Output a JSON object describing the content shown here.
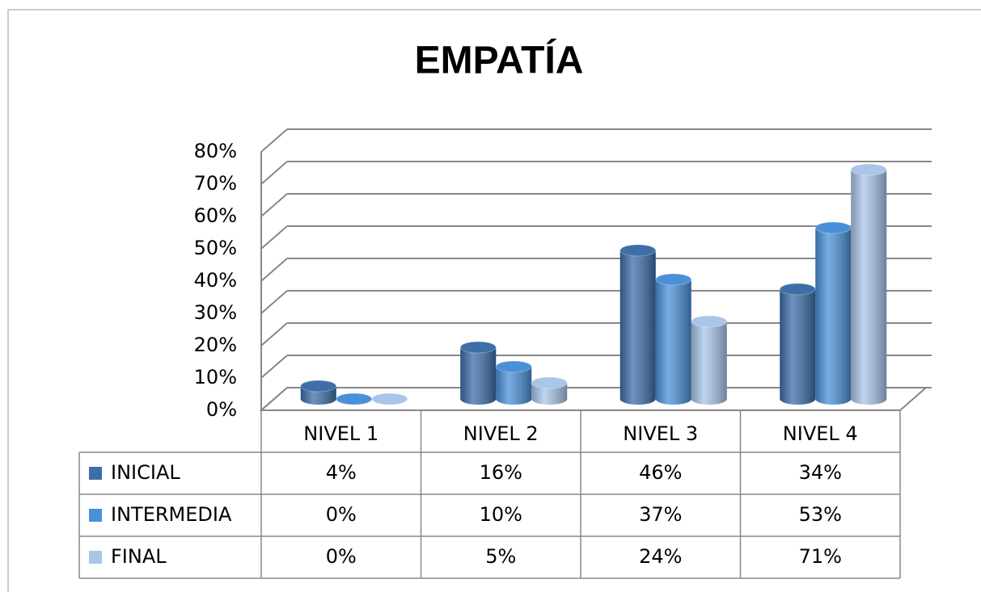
{
  "chart_data": {
    "type": "bar3d",
    "title": "EMPATÍA",
    "categories": [
      "NIVEL 1",
      "NIVEL 2",
      "NIVEL 3",
      "NIVEL 4"
    ],
    "series": [
      {
        "name": "INICIAL",
        "color": "#3d6ea8",
        "values": [
          4,
          16,
          46,
          34
        ],
        "value_labels": [
          "4%",
          "16%",
          "46%",
          "34%"
        ]
      },
      {
        "name": "INTERMEDIA",
        "color": "#4a90d9",
        "values": [
          0,
          10,
          37,
          53
        ],
        "value_labels": [
          "0%",
          "10%",
          "37%",
          "53%"
        ]
      },
      {
        "name": "FINAL",
        "color": "#a9c5e8",
        "values": [
          0,
          5,
          24,
          71
        ],
        "value_labels": [
          "0%",
          "5%",
          "24%",
          "71%"
        ]
      }
    ],
    "ylim": [
      0,
      80
    ],
    "yticks": [
      {
        "value": 0,
        "label": "0%"
      },
      {
        "value": 10,
        "label": "10%"
      },
      {
        "value": 20,
        "label": "20%"
      },
      {
        "value": 30,
        "label": "30%"
      },
      {
        "value": 40,
        "label": "40%"
      },
      {
        "value": 50,
        "label": "50%"
      },
      {
        "value": 60,
        "label": "60%"
      },
      {
        "value": 70,
        "label": "70%"
      },
      {
        "value": 80,
        "label": "80%"
      }
    ],
    "grid": true,
    "legend": "table"
  }
}
